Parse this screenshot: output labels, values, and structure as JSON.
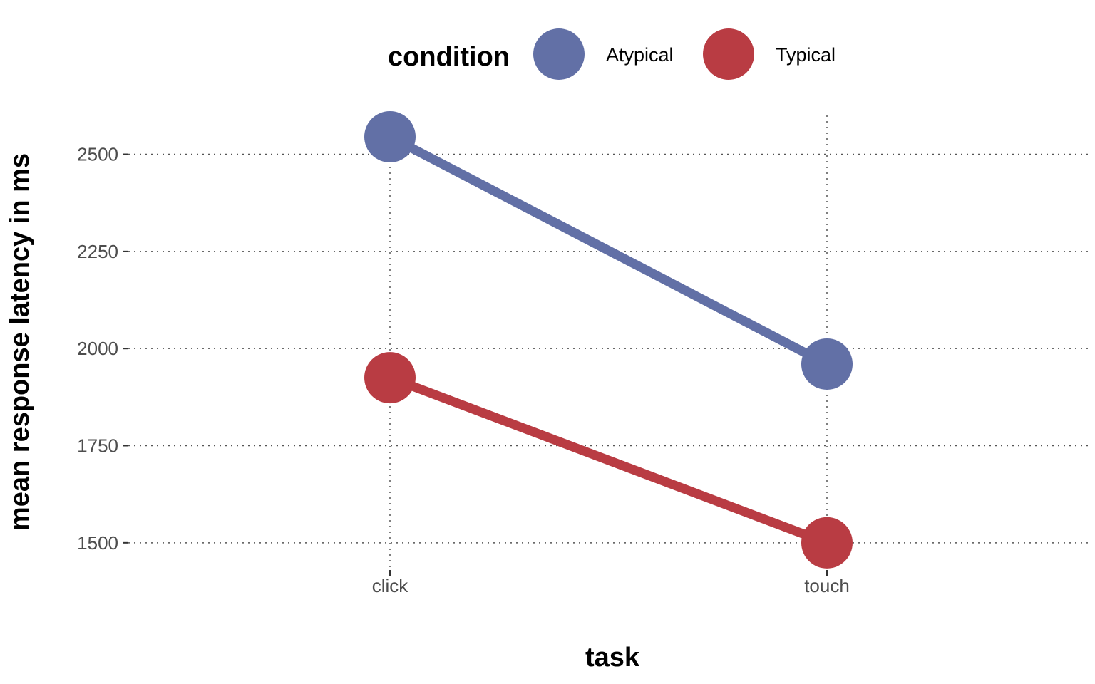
{
  "chart_data": {
    "type": "line",
    "xlabel": "task",
    "ylabel": "mean response latency in ms",
    "categories": [
      "click",
      "touch"
    ],
    "ylim": [
      1430,
      2600
    ],
    "y_ticks": [
      1500,
      1750,
      2000,
      2250,
      2500
    ],
    "grid": "dotted",
    "legend": {
      "title": "condition",
      "placement": "top"
    },
    "series": [
      {
        "name": "Atypical",
        "color": "#6270a6",
        "values": [
          2545,
          1960
        ]
      },
      {
        "name": "Typical",
        "color": "#b93c43",
        "values": [
          1925,
          1500
        ]
      }
    ]
  }
}
